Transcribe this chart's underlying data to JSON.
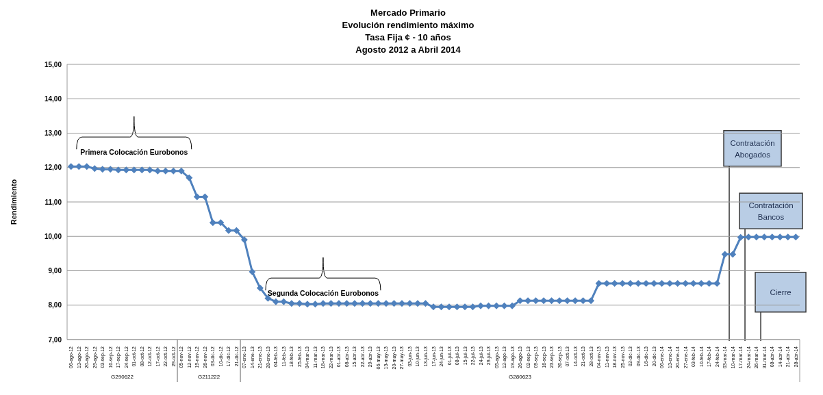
{
  "chart_data": {
    "type": "line",
    "title": "Mercado Primario",
    "subtitle": "Evolución rendimiento máximo\nTasa Fija ¢ - 10 años\nAgosto 2012  a Abril 2014",
    "ylabel": "Rendimiento",
    "categories": [
      "06-ago-12",
      "13-ago-12",
      "20-ago-12",
      "29-ago-12",
      "03-sep-12",
      "10-sep-12",
      "17-sep-12",
      "24-sep-12",
      "01-oct-12",
      "08-oct-12",
      "12-oct-12",
      "17-oct-12",
      "22-oct-12",
      "29-oct-12",
      "05-nov-12",
      "12-nov-12",
      "19-nov-12",
      "26-nov-12",
      "03-dic-12",
      "10-dic-12",
      "17-dic-12",
      "21-dic-12",
      "07-ene-13",
      "14-ene-13",
      "21-ene-13",
      "28-ene-13",
      "04-feb-13",
      "11-feb-13",
      "18-feb-13",
      "25-feb-13",
      "04-mar-13",
      "11-mar-13",
      "18-mar-13",
      "22-mar-13",
      "01-abr-13",
      "08-abr-13",
      "15-abr-13",
      "22-abr-13",
      "29-abr-13",
      "06-may-13",
      "13-may-13",
      "20-may-13",
      "27-may-13",
      "03-jun-13",
      "10-jun-13",
      "13-jun-13",
      "17-jun-13",
      "24-jun-13",
      "01-jul-13",
      "08-jul-13",
      "15-jul-13",
      "22-jul-13",
      "24-jul-13",
      "29-jul-13",
      "05-ago-13",
      "12-ago-13",
      "19-ago-13",
      "26-ago-13",
      "02-sep-13",
      "09-sep-13",
      "16-sep-13",
      "23-sep-13",
      "30-sep-13",
      "07-oct-13",
      "14-oct-13",
      "21-oct-13",
      "28-oct-13",
      "04-nov-13",
      "11-nov-13",
      "18-nov-13",
      "25-nov-13",
      "02-dic-13",
      "09-dic-13",
      "16-dic-13",
      "20-dic-13",
      "06-ene-14",
      "13-ene-14",
      "20-ene-14",
      "27-ene-14",
      "03-feb-14",
      "10-feb-14",
      "17-feb-14",
      "24-feb-14",
      "03-mar-14",
      "10-mar-14",
      "17-mar-14",
      "24-mar-14",
      "26-mar-14",
      "31-mar-14",
      "08-abr-14",
      "14-abr-14",
      "21-abr-14",
      "28-abr-14"
    ],
    "series": [
      {
        "color": "#4f81bd",
        "values": [
          12.03,
          12.03,
          12.03,
          11.97,
          11.95,
          11.95,
          11.93,
          11.93,
          11.93,
          11.93,
          11.93,
          11.9,
          11.9,
          11.9,
          11.9,
          11.7,
          11.15,
          11.15,
          10.4,
          10.4,
          10.17,
          10.17,
          9.9,
          8.97,
          8.5,
          8.2,
          8.1,
          8.1,
          8.05,
          8.05,
          8.03,
          8.03,
          8.05,
          8.05,
          8.05,
          8.05,
          8.05,
          8.05,
          8.05,
          8.05,
          8.05,
          8.05,
          8.05,
          8.05,
          8.05,
          8.05,
          7.95,
          7.95,
          7.95,
          7.95,
          7.95,
          7.95,
          7.98,
          7.98,
          7.98,
          7.98,
          7.98,
          8.13,
          8.13,
          8.13,
          8.13,
          8.13,
          8.13,
          8.13,
          8.13,
          8.13,
          8.13,
          8.63,
          8.63,
          8.63,
          8.63,
          8.63,
          8.63,
          8.63,
          8.63,
          8.63,
          8.63,
          8.63,
          8.63,
          8.63,
          8.63,
          8.63,
          8.63,
          9.48,
          9.48,
          9.97,
          9.98,
          9.98,
          9.98,
          9.98,
          9.98,
          9.98,
          9.98
        ]
      }
    ],
    "ylim": [
      7,
      15
    ],
    "yticks": [
      {
        "value": 7,
        "label": "7,00"
      },
      {
        "value": 8,
        "label": "8,00"
      },
      {
        "value": 9,
        "label": "9,00"
      },
      {
        "value": 10,
        "label": "10,00"
      },
      {
        "value": 11,
        "label": "11,00"
      },
      {
        "value": 12,
        "label": "12,00"
      },
      {
        "value": 13,
        "label": "13,00"
      },
      {
        "value": 14,
        "label": "14,00"
      },
      {
        "value": 15,
        "label": "15,00"
      }
    ],
    "grid": "y",
    "legend": false,
    "marker": "diamond",
    "line_style": "solid",
    "annotations": [
      "Primera Colocación Eurobonos",
      "Segunda Colocación Eurobonos",
      "Contratación Abogados",
      "Contratación Bancos",
      "Cierre",
      "G290622",
      "G211222",
      "G280623"
    ]
  }
}
